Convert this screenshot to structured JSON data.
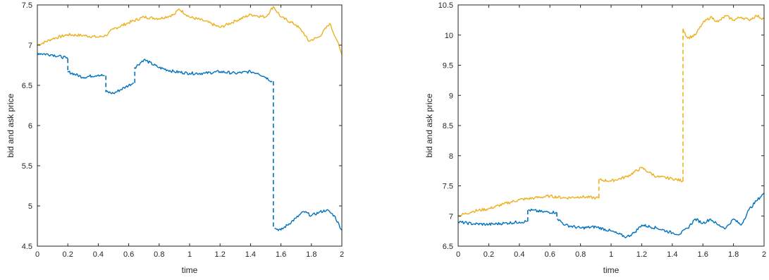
{
  "chart_data": [
    {
      "type": "line",
      "xlabel": "time",
      "ylabel": "bid and ask price",
      "xlim": [
        0,
        2
      ],
      "ylim": [
        4.5,
        7.5
      ],
      "x_ticks": [
        "0",
        "0.2",
        "0.4",
        "0.6",
        "0.8",
        "1",
        "1.2",
        "1.4",
        "1.6",
        "1.8",
        "2"
      ],
      "y_ticks": [
        "4.5",
        "5",
        "5.5",
        "6",
        "6.5",
        "7",
        "7.5"
      ],
      "grid": false,
      "series": [
        {
          "color": "#EDB120",
          "points": [
            [
              0,
              7.0
            ],
            [
              0.1,
              7.08
            ],
            [
              0.2,
              7.13
            ],
            [
              0.3,
              7.12
            ],
            [
              0.4,
              7.1
            ],
            [
              0.45,
              7.12
            ],
            [
              0.5,
              7.2
            ],
            [
              0.6,
              7.28
            ],
            [
              0.7,
              7.35
            ],
            [
              0.8,
              7.33
            ],
            [
              0.9,
              7.38
            ],
            [
              0.93,
              7.45
            ],
            [
              1.0,
              7.35
            ],
            [
              1.1,
              7.3
            ],
            [
              1.2,
              7.22
            ],
            [
              1.3,
              7.3
            ],
            [
              1.4,
              7.38
            ],
            [
              1.5,
              7.35
            ],
            [
              1.55,
              7.48
            ],
            [
              1.6,
              7.35
            ],
            [
              1.7,
              7.25
            ],
            [
              1.75,
              7.15
            ],
            [
              1.78,
              7.05
            ],
            [
              1.85,
              7.1
            ],
            [
              1.92,
              7.27
            ],
            [
              1.97,
              7.05
            ],
            [
              2.0,
              6.88
            ]
          ],
          "jumps": []
        },
        {
          "color": "#0072BD",
          "points": [
            [
              0,
              6.9
            ],
            [
              0.1,
              6.88
            ],
            [
              0.19,
              6.84
            ],
            [
              0.2,
              6.83
            ],
            null,
            [
              0.2,
              6.67
            ],
            [
              0.3,
              6.6
            ],
            [
              0.4,
              6.63
            ],
            [
              0.44,
              6.62
            ],
            null,
            [
              0.45,
              6.42
            ],
            [
              0.5,
              6.4
            ],
            [
              0.58,
              6.48
            ],
            [
              0.63,
              6.53
            ],
            null,
            [
              0.64,
              6.72
            ],
            [
              0.7,
              6.82
            ],
            [
              0.8,
              6.72
            ],
            [
              0.9,
              6.67
            ],
            [
              1.0,
              6.65
            ],
            [
              1.1,
              6.65
            ],
            [
              1.2,
              6.67
            ],
            [
              1.3,
              6.65
            ],
            [
              1.4,
              6.67
            ],
            [
              1.45,
              6.65
            ],
            [
              1.5,
              6.6
            ],
            [
              1.54,
              6.55
            ],
            null,
            [
              1.56,
              4.72
            ],
            [
              1.6,
              4.7
            ],
            [
              1.7,
              4.85
            ],
            [
              1.75,
              4.93
            ],
            [
              1.8,
              4.88
            ],
            [
              1.85,
              4.92
            ],
            [
              1.9,
              4.95
            ],
            [
              1.95,
              4.88
            ],
            [
              2.0,
              4.7
            ]
          ],
          "jumps": [
            [
              0.2,
              6.83,
              6.67
            ],
            [
              0.45,
              6.62,
              6.42
            ],
            [
              0.64,
              6.53,
              6.72
            ],
            [
              1.55,
              6.55,
              4.72
            ]
          ]
        }
      ]
    },
    {
      "type": "line",
      "xlabel": "time",
      "ylabel": "bid and ask price",
      "xlim": [
        0,
        2
      ],
      "ylim": [
        6.5,
        10.5
      ],
      "x_ticks": [
        "0",
        "0.2",
        "0.4",
        "0.6",
        "0.8",
        "1",
        "1.2",
        "1.4",
        "1.6",
        "1.8",
        "2"
      ],
      "y_ticks": [
        "6.5",
        "7",
        "7.5",
        "8",
        "8.5",
        "9",
        "9.5",
        "10",
        "10.5"
      ],
      "grid": false,
      "series": [
        {
          "color": "#EDB120",
          "points": [
            [
              0,
              7.0
            ],
            [
              0.1,
              7.08
            ],
            [
              0.2,
              7.12
            ],
            [
              0.3,
              7.2
            ],
            [
              0.4,
              7.27
            ],
            [
              0.5,
              7.3
            ],
            [
              0.6,
              7.33
            ],
            [
              0.7,
              7.3
            ],
            [
              0.8,
              7.32
            ],
            [
              0.9,
              7.3
            ],
            [
              0.92,
              7.3
            ],
            null,
            [
              0.92,
              7.6
            ],
            [
              1.0,
              7.58
            ],
            [
              1.1,
              7.65
            ],
            [
              1.2,
              7.8
            ],
            [
              1.25,
              7.72
            ],
            [
              1.3,
              7.65
            ],
            [
              1.4,
              7.62
            ],
            [
              1.47,
              7.58
            ],
            null,
            [
              1.47,
              10.1
            ],
            [
              1.5,
              9.95
            ],
            [
              1.55,
              10.0
            ],
            [
              1.6,
              10.2
            ],
            [
              1.65,
              10.3
            ],
            [
              1.7,
              10.22
            ],
            [
              1.75,
              10.32
            ],
            [
              1.8,
              10.25
            ],
            [
              1.85,
              10.3
            ],
            [
              1.9,
              10.25
            ],
            [
              1.95,
              10.32
            ],
            [
              2.0,
              10.27
            ]
          ],
          "jumps": [
            [
              0.92,
              7.3,
              7.6
            ],
            [
              1.47,
              7.58,
              10.1
            ]
          ]
        },
        {
          "color": "#0072BD",
          "points": [
            [
              0,
              6.9
            ],
            [
              0.1,
              6.87
            ],
            [
              0.2,
              6.86
            ],
            [
              0.3,
              6.88
            ],
            [
              0.4,
              6.9
            ],
            [
              0.45,
              6.91
            ],
            null,
            [
              0.46,
              7.1
            ],
            [
              0.55,
              7.07
            ],
            [
              0.64,
              7.06
            ],
            null,
            [
              0.65,
              6.95
            ],
            [
              0.7,
              6.85
            ],
            [
              0.8,
              6.8
            ],
            [
              0.9,
              6.82
            ],
            [
              1.0,
              6.75
            ],
            [
              1.05,
              6.7
            ],
            [
              1.1,
              6.65
            ],
            [
              1.15,
              6.72
            ],
            [
              1.2,
              6.85
            ],
            [
              1.3,
              6.8
            ],
            [
              1.4,
              6.72
            ],
            [
              1.45,
              6.7
            ],
            [
              1.5,
              6.8
            ],
            [
              1.55,
              6.95
            ],
            [
              1.6,
              6.88
            ],
            [
              1.65,
              6.95
            ],
            [
              1.7,
              6.85
            ],
            [
              1.75,
              6.8
            ],
            [
              1.8,
              6.95
            ],
            [
              1.85,
              6.85
            ],
            [
              1.9,
              7.1
            ],
            [
              1.95,
              7.25
            ],
            [
              2.0,
              7.38
            ]
          ],
          "jumps": [
            [
              0.455,
              6.91,
              7.1
            ],
            [
              0.645,
              7.06,
              6.95
            ]
          ]
        }
      ]
    }
  ]
}
